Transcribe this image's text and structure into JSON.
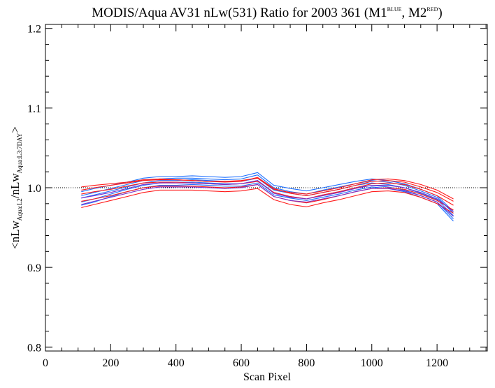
{
  "chart_data": {
    "type": "line",
    "title": {
      "main": "MODIS/Aqua AV31 nLw(531) Ratio for 2003 361 (M1",
      "sup1": "BLUE",
      "mid": ", M2",
      "sup2": "RED",
      "end": ")"
    },
    "xlabel": "Scan Pixel",
    "ylabel": {
      "pre": "<nLw",
      "sub1": "Aqua:L2",
      "mid": "/nLw",
      "sub2": "Aqua:L3:7DAY",
      "post": ">"
    },
    "xlim": [
      0,
      1354
    ],
    "ylim": [
      0.795,
      1.205
    ],
    "xticks": [
      0,
      200,
      400,
      600,
      800,
      1000,
      1200
    ],
    "xtick_labels": [
      "0",
      "200",
      "400",
      "600",
      "800",
      "1000",
      "1200"
    ],
    "yticks": [
      0.8,
      0.9,
      1.0,
      1.1,
      1.2
    ],
    "ytick_labels": [
      "0.8",
      "0.9",
      "1.0",
      "1.1",
      "1.2"
    ],
    "reference_line": 1.0,
    "colors": {
      "M1": "#1e6fff",
      "M2": "#ff1a1a",
      "mix": "#7a2fc8"
    },
    "x": [
      110,
      150,
      200,
      250,
      300,
      350,
      400,
      450,
      500,
      550,
      600,
      650,
      700,
      750,
      800,
      850,
      900,
      950,
      1000,
      1050,
      1100,
      1150,
      1200,
      1250
    ],
    "series": [
      {
        "group": "M1",
        "values": [
          0.987,
          0.991,
          0.996,
          1.001,
          1.006,
          1.009,
          1.009,
          1.01,
          1.009,
          1.008,
          1.008,
          1.012,
          0.997,
          0.993,
          0.99,
          0.994,
          0.998,
          1.003,
          1.006,
          1.004,
          1.0,
          0.993,
          0.985,
          0.965
        ]
      },
      {
        "group": "M1",
        "values": [
          0.978,
          0.982,
          0.989,
          0.995,
          1.0,
          1.003,
          1.003,
          1.004,
          1.003,
          1.002,
          1.002,
          1.006,
          0.991,
          0.987,
          0.984,
          0.988,
          0.992,
          0.997,
          1.001,
          0.999,
          0.995,
          0.988,
          0.98,
          0.958
        ]
      },
      {
        "group": "M1",
        "values": [
          0.995,
          0.999,
          1.003,
          1.007,
          1.012,
          1.014,
          1.014,
          1.015,
          1.014,
          1.013,
          1.014,
          1.019,
          1.003,
          0.999,
          0.996,
          1.0,
          1.004,
          1.008,
          1.011,
          1.009,
          1.005,
          0.998,
          0.99,
          0.97
        ]
      },
      {
        "group": "M1",
        "values": [
          0.982,
          0.986,
          0.992,
          0.998,
          1.003,
          1.006,
          1.007,
          1.007,
          1.006,
          1.005,
          1.005,
          1.009,
          0.994,
          0.989,
          0.986,
          0.991,
          0.995,
          1.0,
          1.003,
          1.001,
          0.997,
          0.99,
          0.982,
          0.961
        ]
      },
      {
        "group": "M1",
        "values": [
          0.99,
          0.994,
          0.999,
          1.004,
          1.009,
          1.011,
          1.012,
          1.012,
          1.011,
          1.01,
          1.011,
          1.016,
          1.0,
          0.995,
          0.992,
          0.997,
          1.001,
          1.005,
          1.009,
          1.007,
          1.003,
          0.996,
          0.988,
          0.968
        ]
      },
      {
        "group": "M2",
        "values": [
          1.001,
          1.003,
          1.005,
          1.007,
          1.01,
          1.011,
          1.01,
          1.009,
          1.008,
          1.008,
          1.009,
          1.012,
          0.998,
          0.994,
          0.992,
          0.996,
          1.0,
          1.005,
          1.01,
          1.011,
          1.009,
          1.004,
          0.997,
          0.986
        ]
      },
      {
        "group": "M2",
        "values": [
          0.983,
          0.986,
          0.99,
          0.995,
          1.0,
          1.002,
          1.002,
          1.002,
          1.001,
          1.0,
          1.001,
          1.004,
          0.989,
          0.984,
          0.981,
          0.985,
          0.99,
          0.995,
          0.999,
          1.0,
          0.998,
          0.992,
          0.984,
          0.972
        ]
      },
      {
        "group": "M2",
        "values": [
          0.992,
          0.995,
          0.998,
          1.002,
          1.006,
          1.007,
          1.007,
          1.006,
          1.005,
          1.004,
          1.005,
          1.008,
          0.994,
          0.989,
          0.986,
          0.991,
          0.995,
          1.0,
          1.005,
          1.006,
          1.004,
          0.998,
          0.99,
          0.978
        ]
      },
      {
        "group": "M2",
        "values": [
          0.975,
          0.979,
          0.984,
          0.989,
          0.994,
          0.997,
          0.997,
          0.997,
          0.996,
          0.995,
          0.996,
          0.999,
          0.985,
          0.979,
          0.976,
          0.981,
          0.985,
          0.99,
          0.995,
          0.996,
          0.994,
          0.988,
          0.98,
          0.968
        ]
      },
      {
        "group": "M2",
        "values": [
          0.997,
          1.0,
          1.003,
          1.006,
          1.009,
          1.01,
          1.01,
          1.009,
          1.008,
          1.007,
          1.008,
          1.013,
          0.999,
          0.993,
          0.99,
          0.994,
          0.998,
          1.003,
          1.008,
          1.009,
          1.007,
          1.001,
          0.994,
          0.983
        ]
      },
      {
        "group": "mix",
        "values": [
          0.987,
          0.99,
          0.994,
          0.999,
          1.004,
          1.006,
          1.006,
          1.006,
          1.005,
          1.004,
          1.005,
          1.009,
          0.993,
          0.988,
          0.986,
          0.99,
          0.994,
          0.999,
          1.003,
          1.003,
          1.0,
          0.994,
          0.986,
          0.97
        ]
      },
      {
        "group": "mix",
        "values": [
          0.979,
          0.983,
          0.988,
          0.993,
          0.998,
          1.001,
          1.001,
          1.001,
          1.0,
          0.999,
          1.0,
          1.004,
          0.989,
          0.984,
          0.982,
          0.986,
          0.99,
          0.995,
          0.999,
          0.999,
          0.996,
          0.99,
          0.982,
          0.964
        ]
      }
    ]
  }
}
